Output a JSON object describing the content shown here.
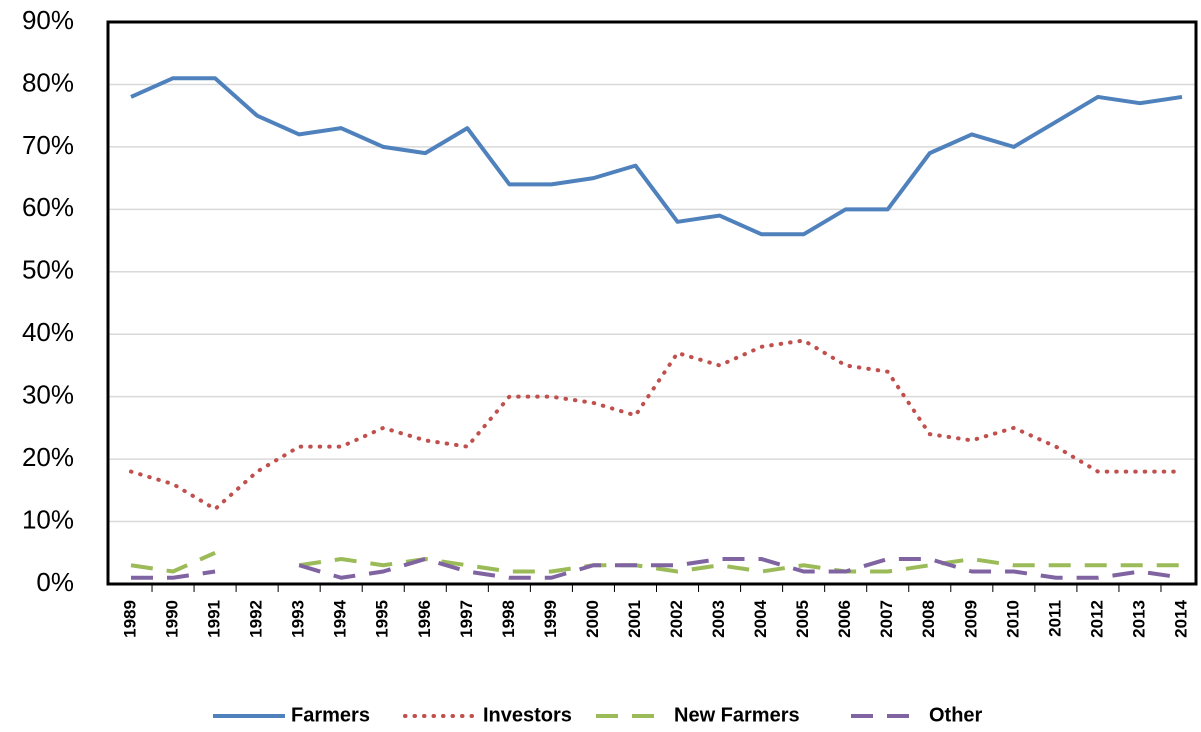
{
  "chart_data": {
    "type": "line",
    "categories": [
      "1989",
      "1990",
      "1991",
      "1992",
      "1993",
      "1994",
      "1995",
      "1996",
      "1997",
      "1998",
      "1999",
      "2000",
      "2001",
      "2002",
      "2003",
      "2004",
      "2005",
      "2006",
      "2007",
      "2008",
      "2009",
      "2010",
      "2011",
      "2012",
      "2013",
      "2014"
    ],
    "series": [
      {
        "name": "Farmers",
        "color": "#4f81bd",
        "style": "solid",
        "values": [
          78,
          81,
          81,
          75,
          72,
          73,
          70,
          69,
          73,
          64,
          64,
          65,
          67,
          58,
          59,
          56,
          56,
          60,
          60,
          69,
          72,
          70,
          74,
          78,
          77,
          78
        ]
      },
      {
        "name": "Investors",
        "color": "#c0504d",
        "style": "dotted",
        "values": [
          18,
          16,
          12,
          18,
          22,
          22,
          25,
          23,
          22,
          30,
          30,
          29,
          27,
          37,
          35,
          38,
          39,
          35,
          34,
          24,
          23,
          25,
          22,
          18,
          18,
          18
        ]
      },
      {
        "name": "New Farmers",
        "color": "#9bbb59",
        "style": "dashed",
        "values": [
          3,
          2,
          5,
          null,
          3,
          4,
          3,
          4,
          3,
          2,
          2,
          3,
          3,
          2,
          3,
          2,
          3,
          2,
          2,
          3,
          4,
          3,
          3,
          3,
          3,
          3
        ]
      },
      {
        "name": "Other",
        "color": "#8064a2",
        "style": "dashed",
        "values": [
          1,
          1,
          2,
          null,
          3,
          1,
          2,
          4,
          2,
          1,
          1,
          3,
          3,
          3,
          4,
          4,
          2,
          2,
          4,
          4,
          2,
          2,
          1,
          1,
          2,
          1
        ]
      }
    ],
    "ylim": [
      0,
      90
    ],
    "yticks": [
      {
        "value": 0,
        "label": "0%"
      },
      {
        "value": 10,
        "label": "10%"
      },
      {
        "value": 20,
        "label": "20%"
      },
      {
        "value": 30,
        "label": "30%"
      },
      {
        "value": 40,
        "label": "40%"
      },
      {
        "value": 50,
        "label": "50%"
      },
      {
        "value": 60,
        "label": "60%"
      },
      {
        "value": 70,
        "label": "70%"
      },
      {
        "value": 80,
        "label": "80%"
      },
      {
        "value": 90,
        "label": "90%"
      }
    ],
    "grid": true,
    "legend": "bottom"
  }
}
